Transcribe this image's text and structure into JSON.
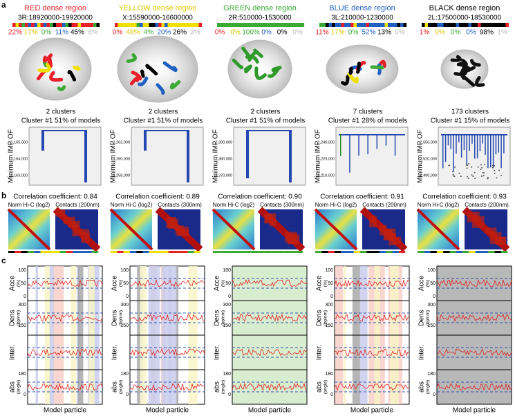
{
  "panels": {
    "a": "a",
    "b": "b",
    "c": "c"
  },
  "shared": {
    "ylabel": "Minimum IMP OF",
    "hic_label": "Norm Hi-C (log2)",
    "xlabel": "Model particle",
    "tracks": [
      {
        "label": "Acce",
        "unit": "(%)",
        "ticks": [
          "100",
          "50",
          "0"
        ]
      },
      {
        "label": "Dens",
        "unit": "(bp/nm)",
        "ticks": [
          "300",
          "150"
        ]
      },
      {
        "label": "Inter.",
        "unit": "",
        "ticks": []
      },
      {
        "label": "abs",
        "unit": "(angle)",
        "ticks": [
          "180",
          "0"
        ]
      }
    ]
  },
  "regions": [
    {
      "title": "RED dense region",
      "coords": "3R:18920000-19920000",
      "percents": [
        "22%",
        "17%",
        "0%",
        "11%",
        "45%",
        "6%"
      ],
      "clusters": "2 clusters",
      "cluster_info": "Cluster #1  51% of models",
      "yticks": [
        "1,165,000",
        "1,164,000",
        "1,163,000"
      ],
      "correlation": "Correlation coefficient: 0.84",
      "contacts_label": "Contacts (200nm)"
    },
    {
      "title": "YELLOW dense region",
      "coords": "X:15590000-16600000",
      "percents": [
        "0%",
        "48%",
        "4%",
        "20%",
        "26%",
        "3%"
      ],
      "clusters": "2 clusters",
      "cluster_info": "Cluster #1 51% of models",
      "yticks": [
        "1,262,000",
        "1,260,000",
        "1,258,000"
      ],
      "correlation": "Correlation coefficient: 0.89",
      "contacts_label": "Contacts (300nm)"
    },
    {
      "title": "GREEN dense region",
      "coords": "2R:510000-1530000",
      "percents": [
        "0%",
        "0%",
        "100%",
        "0%",
        "0%",
        "0%"
      ],
      "clusters": "2 clusters",
      "cluster_info": "Cluster #1 51% of models",
      "yticks": [
        "2,390,000",
        "2,380,000",
        "2,370,000"
      ],
      "correlation": "Correlation coefficient: 0.90",
      "contacts_label": "Contacts (300nm)"
    },
    {
      "title": "BLUE dense region",
      "coords": "3L:210000-1230000",
      "percents": [
        "11%",
        "17%",
        "0%",
        "52%",
        "13%",
        "0%"
      ],
      "clusters": "7 clusters",
      "cluster_info": "Cluster #1 28% of models",
      "yticks": [
        "1,240,000",
        "1,225,000",
        "1,210,000"
      ],
      "correlation": "Correlation coefficient: 0.91",
      "contacts_label": "Contacts (200nm)"
    },
    {
      "title": "BLACK dense region",
      "coords": "2L:17500000-18530000",
      "percents": [
        "1%",
        "0%",
        "0%",
        "0%",
        "98%",
        "1%"
      ],
      "clusters": "173 clusters",
      "cluster_info": "Cluster #1 15% of models",
      "yticks": [
        "2,550,000",
        "2,520,000",
        "2,490,000"
      ],
      "correlation": "Correlation coefficient: 0.93",
      "contacts_label": "Contacts (200nm)"
    }
  ]
}
